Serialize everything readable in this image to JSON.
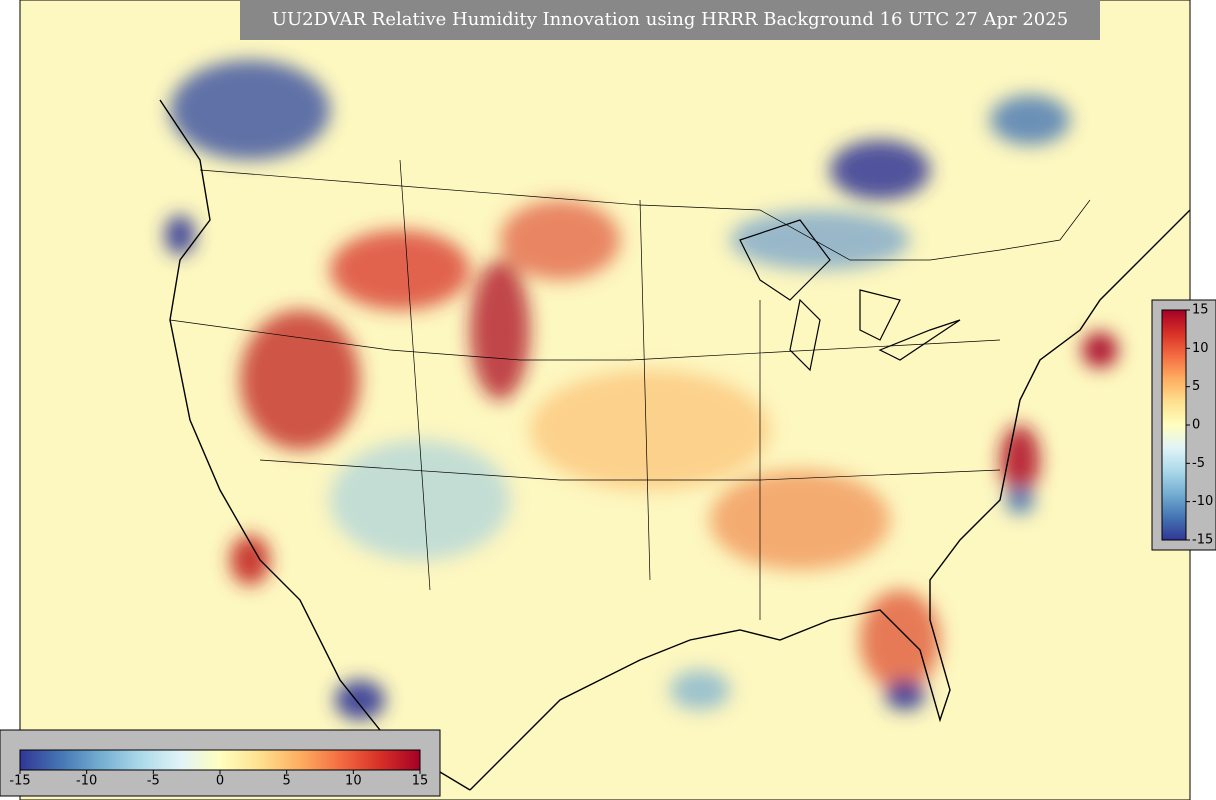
{
  "title": "UU2DVAR Relative Humidity Innovation using HRRR Background 16 UTC 27 Apr 2025",
  "colormap": [
    "#313695",
    "#4575b4",
    "#74add1",
    "#abd9e9",
    "#e0f3f8",
    "#ffffbf",
    "#fee090",
    "#fdae61",
    "#f46d43",
    "#d73027",
    "#a50026"
  ],
  "horizontal_colorbar": {
    "lim": [
      -15,
      15
    ],
    "ticks": [
      -15,
      -10,
      -5,
      0,
      5,
      10,
      15
    ]
  },
  "vertical_colorbar": {
    "lim": [
      -15,
      15
    ],
    "ticks": [
      -15,
      -10,
      -5,
      0,
      5,
      10,
      15
    ]
  }
}
